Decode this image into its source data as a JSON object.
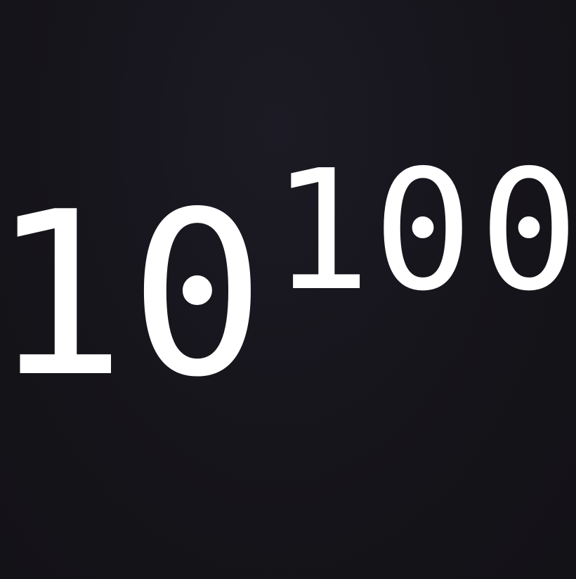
{
  "expression": {
    "base": {
      "digits": [
        "1",
        "0"
      ]
    },
    "exponent": {
      "digits": [
        "1",
        "0",
        "0"
      ]
    }
  },
  "colors": {
    "background": "#151419",
    "text": "#ffffff"
  }
}
